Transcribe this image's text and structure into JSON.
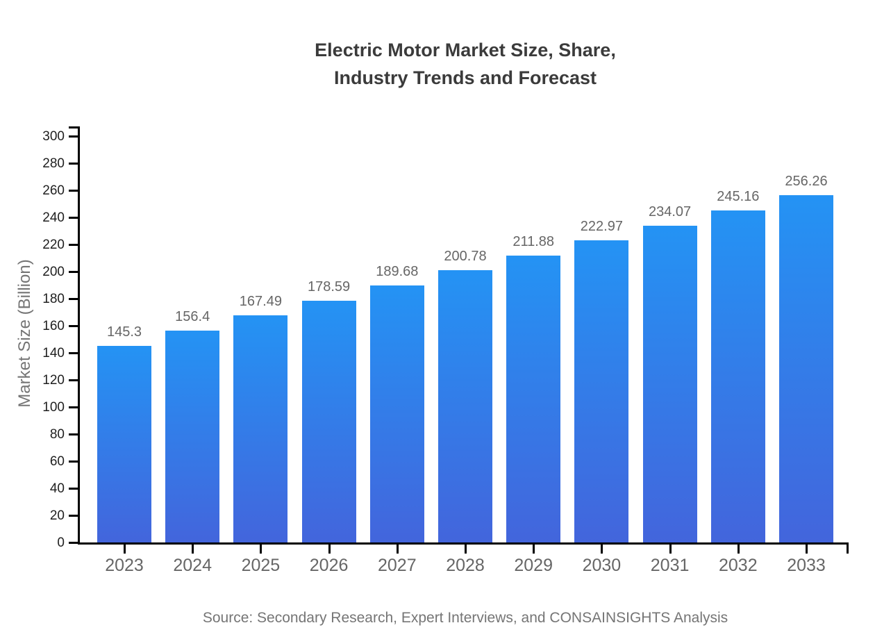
{
  "chart": {
    "title_line1": "Electric Motor Market Size, Share,",
    "title_line2": "Industry Trends and Forecast",
    "source": "Source: Secondary Research, Expert Interviews, and CONSAINSIGHTS Analysis"
  },
  "chart_data": {
    "type": "bar",
    "title": "Electric Motor Market Size, Share, Industry Trends and Forecast",
    "categories": [
      "2023",
      "2024",
      "2025",
      "2026",
      "2027",
      "2028",
      "2029",
      "2030",
      "2031",
      "2032",
      "2033"
    ],
    "values": [
      145.3,
      156.4,
      167.49,
      178.59,
      189.68,
      200.78,
      211.88,
      222.97,
      234.07,
      245.16,
      256.26
    ],
    "xlabel": "",
    "ylabel": "Market Size (Billion)",
    "ylim": [
      0,
      300
    ],
    "ytick_step": 20,
    "grid": false,
    "legend": false,
    "data_labels": true,
    "colors": {
      "bar_gradient_top": "#2493F4",
      "bar_gradient_bottom": "#4365DC",
      "axis": "#000000",
      "title_text": "#3b3b3b",
      "tick_text": "#1f1f1f",
      "category_text": "#666666",
      "value_label_text": "#666666",
      "muted_text": "#757575"
    }
  }
}
